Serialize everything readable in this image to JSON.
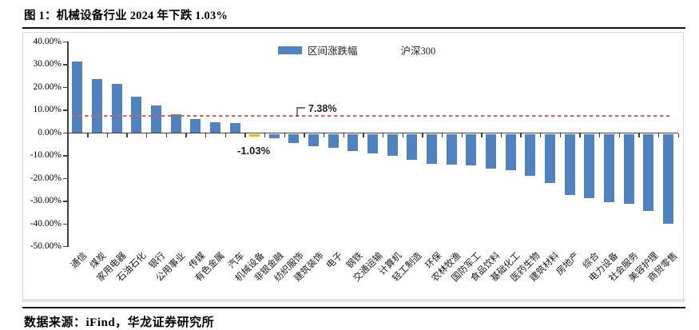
{
  "title": "图 1：机械设备行业 2024 年下跌 1.03%",
  "footer": "数据来源：iFind，华龙证券研究所",
  "legend": {
    "bar_label": "区间涨跌幅",
    "line_label": "沪深300"
  },
  "annotations": {
    "csi300_value": "7.38%",
    "highlight_value": "-1.03%"
  },
  "colors": {
    "bar": "#4f82be",
    "highlight": "#f5b700",
    "refline": "#db5e5e"
  },
  "chart_data": {
    "type": "bar",
    "title": "图 1：机械设备行业 2024 年下跌 1.03%",
    "categories": [
      "通信",
      "煤炭",
      "家用电器",
      "石油石化",
      "银行",
      "公用事业",
      "传媒",
      "有色金属",
      "汽车",
      "机械设备",
      "非银金融",
      "纺织服饰",
      "建筑装饰",
      "电子",
      "钢铁",
      "交通运输",
      "计算机",
      "轻工制造",
      "环保",
      "农林牧渔",
      "国防军工",
      "食品饮料",
      "基础化工",
      "医药生物",
      "建筑材料",
      "房地产",
      "综合",
      "电力设备",
      "社会服务",
      "美容护理",
      "商贸零售"
    ],
    "values": [
      31.4,
      23.6,
      21.4,
      15.8,
      12.1,
      8.0,
      5.9,
      4.5,
      4.4,
      -1.03,
      -1.8,
      -3.8,
      -5.2,
      -6.0,
      -7.4,
      -8.6,
      -9.7,
      -11.5,
      -13.2,
      -13.6,
      -13.9,
      -15.3,
      -15.9,
      -18.2,
      -21.7,
      -26.7,
      -28.1,
      -29.9,
      -30.8,
      -34.0,
      -39.5
    ],
    "series_name": "区间涨跌幅",
    "highlight_category": "机械设备",
    "highlight_value": -1.03,
    "reference_line": {
      "name": "沪深300",
      "value": 7.38
    },
    "ylim": [
      -50,
      40
    ],
    "ytick_step": 10,
    "yticks": [
      "40.00%",
      "30.00%",
      "20.00%",
      "10.00%",
      "0.00%",
      "-10.00%",
      "-20.00%",
      "-30.00%",
      "-40.00%",
      "-50.00%"
    ],
    "grid": false,
    "legend_position": "top-center"
  }
}
